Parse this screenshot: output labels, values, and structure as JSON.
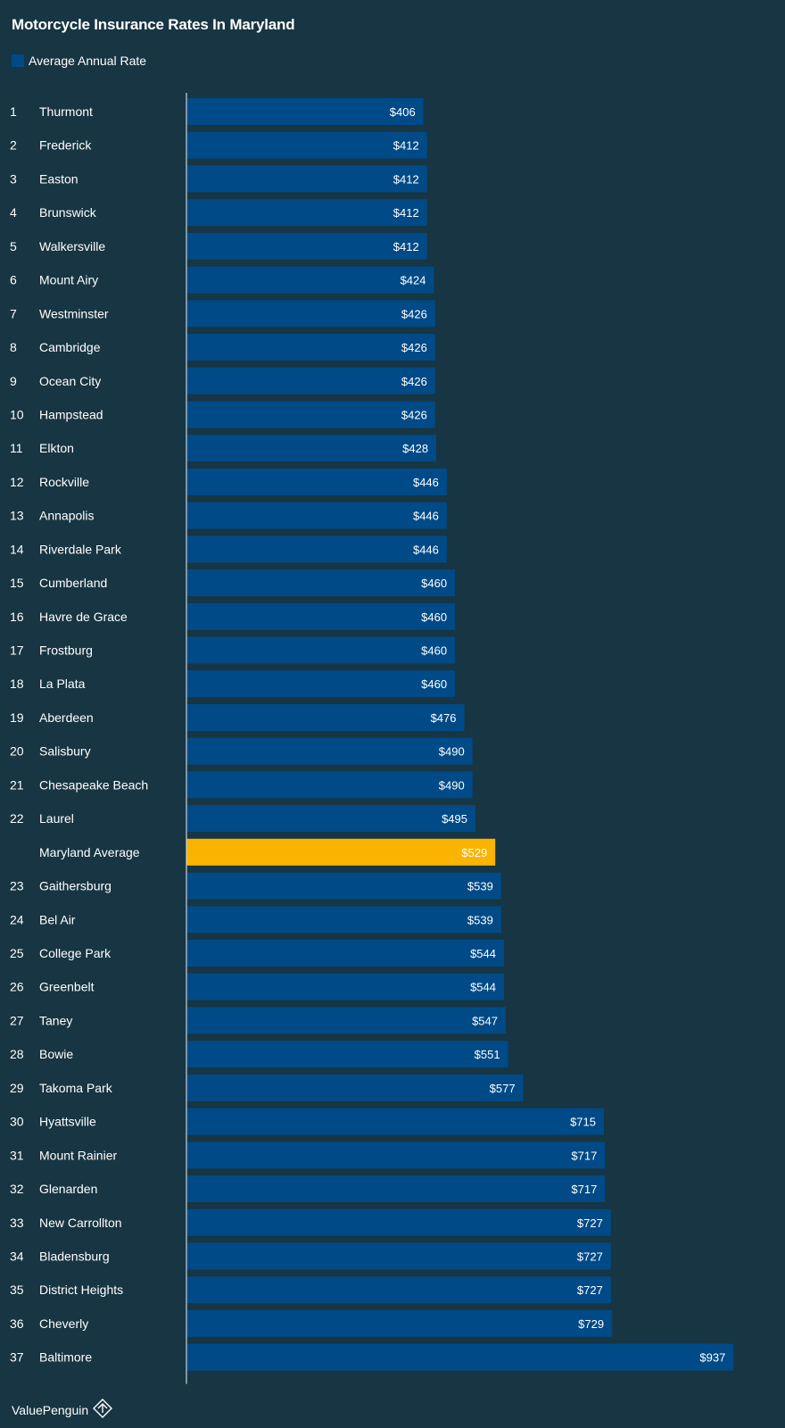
{
  "chart_data": {
    "type": "bar",
    "orientation": "horizontal",
    "title": "Motorcycle Insurance Rates In Maryland",
    "legend": [
      {
        "label": "Average Annual Rate",
        "color": "#004a87"
      }
    ],
    "highlight_color": "#fab400",
    "xlim": [
      0,
      1000
    ],
    "rows": [
      {
        "rank": "1",
        "name": "Thurmont",
        "value": 406,
        "label": "$406"
      },
      {
        "rank": "2",
        "name": "Frederick",
        "value": 412,
        "label": "$412"
      },
      {
        "rank": "3",
        "name": "Easton",
        "value": 412,
        "label": "$412"
      },
      {
        "rank": "4",
        "name": "Brunswick",
        "value": 412,
        "label": "$412"
      },
      {
        "rank": "5",
        "name": "Walkersville",
        "value": 412,
        "label": "$412"
      },
      {
        "rank": "6",
        "name": "Mount Airy",
        "value": 424,
        "label": "$424"
      },
      {
        "rank": "7",
        "name": "Westminster",
        "value": 426,
        "label": "$426"
      },
      {
        "rank": "8",
        "name": "Cambridge",
        "value": 426,
        "label": "$426"
      },
      {
        "rank": "9",
        "name": "Ocean City",
        "value": 426,
        "label": "$426"
      },
      {
        "rank": "10",
        "name": "Hampstead",
        "value": 426,
        "label": "$426"
      },
      {
        "rank": "11",
        "name": "Elkton",
        "value": 428,
        "label": "$428"
      },
      {
        "rank": "12",
        "name": "Rockville",
        "value": 446,
        "label": "$446"
      },
      {
        "rank": "13",
        "name": "Annapolis",
        "value": 446,
        "label": "$446"
      },
      {
        "rank": "14",
        "name": "Riverdale Park",
        "value": 446,
        "label": "$446"
      },
      {
        "rank": "15",
        "name": "Cumberland",
        "value": 460,
        "label": "$460"
      },
      {
        "rank": "16",
        "name": "Havre de Grace",
        "value": 460,
        "label": "$460"
      },
      {
        "rank": "17",
        "name": "Frostburg",
        "value": 460,
        "label": "$460"
      },
      {
        "rank": "18",
        "name": "La Plata",
        "value": 460,
        "label": "$460"
      },
      {
        "rank": "19",
        "name": "Aberdeen",
        "value": 476,
        "label": "$476"
      },
      {
        "rank": "20",
        "name": "Salisbury",
        "value": 490,
        "label": "$490"
      },
      {
        "rank": "21",
        "name": "Chesapeake Beach",
        "value": 490,
        "label": "$490"
      },
      {
        "rank": "22",
        "name": "Laurel",
        "value": 495,
        "label": "$495"
      },
      {
        "rank": "",
        "name": "Maryland Average",
        "value": 529,
        "label": "$529",
        "highlight": true
      },
      {
        "rank": "23",
        "name": "Gaithersburg",
        "value": 539,
        "label": "$539"
      },
      {
        "rank": "24",
        "name": "Bel Air",
        "value": 539,
        "label": "$539"
      },
      {
        "rank": "25",
        "name": "College Park",
        "value": 544,
        "label": "$544"
      },
      {
        "rank": "26",
        "name": "Greenbelt",
        "value": 544,
        "label": "$544"
      },
      {
        "rank": "27",
        "name": "Taney",
        "value": 547,
        "label": "$547"
      },
      {
        "rank": "28",
        "name": "Bowie",
        "value": 551,
        "label": "$551"
      },
      {
        "rank": "29",
        "name": "Takoma Park",
        "value": 577,
        "label": "$577"
      },
      {
        "rank": "30",
        "name": "Hyattsville",
        "value": 715,
        "label": "$715"
      },
      {
        "rank": "31",
        "name": "Mount Rainier",
        "value": 717,
        "label": "$717"
      },
      {
        "rank": "32",
        "name": "Glenarden",
        "value": 717,
        "label": "$717"
      },
      {
        "rank": "33",
        "name": "New Carrollton",
        "value": 727,
        "label": "$727"
      },
      {
        "rank": "34",
        "name": "Bladensburg",
        "value": 727,
        "label": "$727"
      },
      {
        "rank": "35",
        "name": "District Heights",
        "value": 727,
        "label": "$727"
      },
      {
        "rank": "36",
        "name": "Cheverly",
        "value": 729,
        "label": "$729"
      },
      {
        "rank": "37",
        "name": "Baltimore",
        "value": 937,
        "label": "$937"
      }
    ]
  },
  "brand": {
    "name": "ValuePenguin",
    "icon": "valuepenguin-logo-icon"
  }
}
